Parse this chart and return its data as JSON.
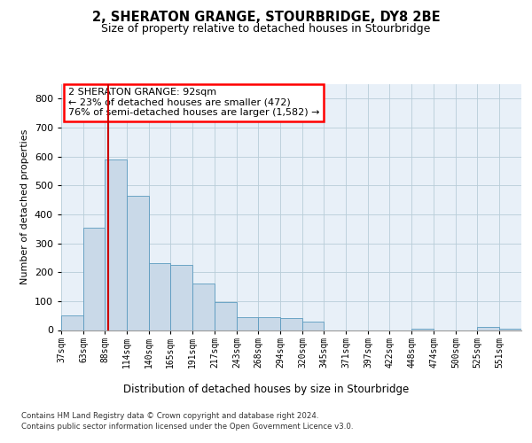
{
  "title": "2, SHERATON GRANGE, STOURBRIDGE, DY8 2BE",
  "subtitle": "Size of property relative to detached houses in Stourbridge",
  "xlabel": "Distribution of detached houses by size in Stourbridge",
  "ylabel": "Number of detached properties",
  "footnote1": "Contains HM Land Registry data © Crown copyright and database right 2024.",
  "footnote2": "Contains public sector information licensed under the Open Government Licence v3.0.",
  "annotation_line1": "2 SHERATON GRANGE: 92sqm",
  "annotation_line2": "← 23% of detached houses are smaller (472)",
  "annotation_line3": "76% of semi-detached houses are larger (1,582) →",
  "bar_color": "#c9d9e8",
  "bar_edge_color": "#5a9abf",
  "grid_color": "#b8cdd8",
  "bg_color": "#e8f0f8",
  "redline_color": "#cc0000",
  "redline_x": 92,
  "categories": [
    "37sqm",
    "63sqm",
    "88sqm",
    "114sqm",
    "140sqm",
    "165sqm",
    "191sqm",
    "217sqm",
    "243sqm",
    "268sqm",
    "294sqm",
    "320sqm",
    "345sqm",
    "371sqm",
    "397sqm",
    "422sqm",
    "448sqm",
    "474sqm",
    "500sqm",
    "525sqm",
    "551sqm"
  ],
  "bin_edges": [
    37,
    63,
    88,
    114,
    140,
    165,
    191,
    217,
    243,
    268,
    294,
    320,
    345,
    371,
    397,
    422,
    448,
    474,
    500,
    525,
    551,
    577
  ],
  "values": [
    50,
    355,
    590,
    465,
    230,
    225,
    160,
    95,
    45,
    45,
    40,
    30,
    0,
    0,
    0,
    0,
    5,
    0,
    0,
    10,
    5
  ],
  "ylim": [
    0,
    850
  ],
  "yticks": [
    0,
    100,
    200,
    300,
    400,
    500,
    600,
    700,
    800
  ]
}
